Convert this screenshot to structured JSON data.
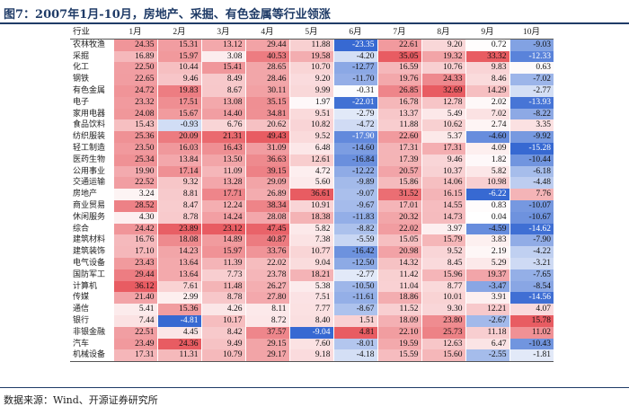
{
  "title": "图7：2007年1月-10月，房地产、采掘、有色金属等行业领涨",
  "source": "数据来源：Wind、开源证券研究所",
  "header": {
    "industry": "行业",
    "months": [
      "1月",
      "2月",
      "3月",
      "4月",
      "5月",
      "6月",
      "7月",
      "8月",
      "9月",
      "10月"
    ]
  },
  "colors": {
    "positive": "#e05a5f",
    "negative": "#2b63c9",
    "rule": "#1f3b67"
  },
  "rows": [
    {
      "name": "农林牧渔",
      "values": [
        "24.35",
        "15.31",
        "13.12",
        "29.44",
        "11.88",
        "-23.35",
        "22.61",
        "9.20",
        "0.72",
        "-9.03"
      ]
    },
    {
      "name": "采掘",
      "values": [
        "16.89",
        "15.97",
        "3.08",
        "40.53",
        "19.58",
        "-4.20",
        "35.05",
        "19.32",
        "33.32",
        "-12.33"
      ]
    },
    {
      "name": "化工",
      "values": [
        "22.50",
        "10.44",
        "15.41",
        "28.65",
        "10.70",
        "-12.77",
        "16.59",
        "10.76",
        "9.83",
        "0.63"
      ]
    },
    {
      "name": "钢铁",
      "values": [
        "22.65",
        "9.46",
        "8.49",
        "28.46",
        "9.20",
        "-11.70",
        "19.76",
        "24.33",
        "8.46",
        "-7.02"
      ]
    },
    {
      "name": "有色金属",
      "values": [
        "24.72",
        "19.83",
        "8.67",
        "30.11",
        "9.99",
        "-0.31",
        "26.85",
        "32.69",
        "14.29",
        "-2.77"
      ]
    },
    {
      "name": "电子",
      "values": [
        "23.32",
        "17.51",
        "13.08",
        "35.15",
        "1.97",
        "-22.01",
        "16.78",
        "12.78",
        "2.02",
        "-13.93"
      ]
    },
    {
      "name": "家用电器",
      "values": [
        "24.08",
        "15.67",
        "14.40",
        "34.81",
        "9.51",
        "-2.79",
        "13.37",
        "5.49",
        "7.02",
        "-8.22"
      ]
    },
    {
      "name": "食品饮料",
      "values": [
        "15.43",
        "-0.93",
        "6.76",
        "20.62",
        "10.82",
        "-4.72",
        "11.88",
        "10.62",
        "2.74",
        "3.35"
      ]
    },
    {
      "name": "纺织服装",
      "values": [
        "25.36",
        "20.09",
        "21.31",
        "49.43",
        "9.52",
        "-17.90",
        "22.60",
        "5.37",
        "-4.60",
        "-9.92"
      ]
    },
    {
      "name": "轻工制造",
      "values": [
        "23.50",
        "16.03",
        "16.43",
        "31.09",
        "6.48",
        "-14.60",
        "17.31",
        "17.31",
        "4.09",
        "-15.28"
      ]
    },
    {
      "name": "医药生物",
      "values": [
        "25.34",
        "13.84",
        "13.50",
        "36.63",
        "12.61",
        "-16.84",
        "17.39",
        "9.46",
        "1.82",
        "-10.44"
      ]
    },
    {
      "name": "公用事业",
      "values": [
        "19.90",
        "17.14",
        "11.09",
        "39.15",
        "4.72",
        "-12.22",
        "20.57",
        "10.37",
        "5.82",
        "-6.18"
      ]
    },
    {
      "name": "交通运输",
      "values": [
        "22.52",
        "9.32",
        "13.28",
        "29.09",
        "5.60",
        "-9.89",
        "15.86",
        "14.06",
        "10.98",
        "-4.48"
      ]
    },
    {
      "name": "房地产",
      "values": [
        "3.24",
        "8.81",
        "17.71",
        "26.89",
        "36.61",
        "-9.07",
        "31.52",
        "16.15",
        "-6.22",
        "7.76"
      ]
    },
    {
      "name": "商业贸易",
      "values": [
        "28.52",
        "8.47",
        "12.24",
        "38.34",
        "10.91",
        "-9.67",
        "17.01",
        "14.55",
        "0.83",
        "-10.07"
      ]
    },
    {
      "name": "休闲服务",
      "values": [
        "4.30",
        "8.78",
        "14.24",
        "28.08",
        "18.38",
        "-11.83",
        "20.32",
        "14.73",
        "0.04",
        "-10.67"
      ]
    },
    {
      "name": "综合",
      "values": [
        "24.42",
        "23.89",
        "23.12",
        "47.45",
        "5.82",
        "-8.82",
        "22.02",
        "3.97",
        "-4.59",
        "-14.62"
      ]
    },
    {
      "name": "建筑材料",
      "values": [
        "16.76",
        "18.08",
        "14.89",
        "40.87",
        "7.38",
        "-5.59",
        "15.05",
        "15.79",
        "3.83",
        "-7.90"
      ]
    },
    {
      "name": "建筑装饰",
      "values": [
        "17.10",
        "14.23",
        "15.97",
        "33.76",
        "10.77",
        "-16.42",
        "20.98",
        "9.52",
        "2.19",
        "-4.22"
      ]
    },
    {
      "name": "电气设备",
      "values": [
        "23.43",
        "13.64",
        "11.39",
        "22.02",
        "9.04",
        "-12.50",
        "14.32",
        "8.45",
        "5.29",
        "-3.21"
      ]
    },
    {
      "name": "国防军工",
      "values": [
        "29.44",
        "13.64",
        "7.73",
        "23.78",
        "18.21",
        "-2.77",
        "11.42",
        "15.96",
        "19.37",
        "-7.65"
      ]
    },
    {
      "name": "计算机",
      "values": [
        "36.12",
        "7.61",
        "11.48",
        "26.27",
        "5.38",
        "-10.50",
        "11.04",
        "8.77",
        "-3.47",
        "-8.54"
      ]
    },
    {
      "name": "传媒",
      "values": [
        "21.40",
        "2.99",
        "8.78",
        "27.80",
        "7.51",
        "-11.61",
        "18.86",
        "10.01",
        "3.91",
        "-14.56"
      ]
    },
    {
      "name": "通信",
      "values": [
        "5.41",
        "15.36",
        "4.26",
        "8.11",
        "7.77",
        "-8.67",
        "11.52",
        "9.30",
        "12.21",
        "4.07"
      ]
    },
    {
      "name": "银行",
      "values": [
        "7.44",
        "-4.81",
        "10.17",
        "8.72",
        "8.40",
        "1.51",
        "18.09",
        "23.80",
        "-2.67",
        "15.78"
      ]
    },
    {
      "name": "非银金融",
      "values": [
        "22.51",
        "4.45",
        "8.42",
        "37.57",
        "-9.04",
        "4.81",
        "22.10",
        "25.73",
        "11.18",
        "11.02"
      ]
    },
    {
      "name": "汽车",
      "values": [
        "23.49",
        "24.36",
        "9.49",
        "29.15",
        "7.60",
        "-8.01",
        "19.59",
        "12.63",
        "6.47",
        "-10.43"
      ]
    },
    {
      "name": "机械设备",
      "values": [
        "17.31",
        "11.31",
        "10.79",
        "29.17",
        "9.18",
        "-4.18",
        "15.59",
        "15.60",
        "-2.55",
        "-1.81"
      ]
    }
  ]
}
